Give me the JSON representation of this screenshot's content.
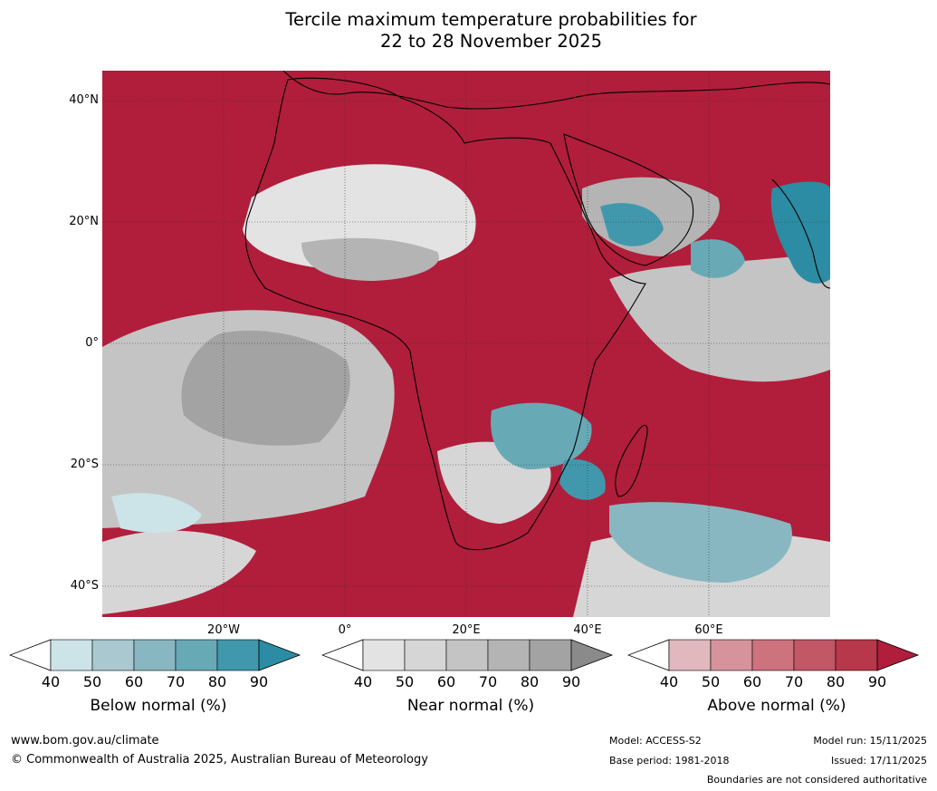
{
  "title": {
    "line1": "Tercile maximum temperature probabilities for",
    "line2": "22 to 28 November 2025"
  },
  "map": {
    "lat_labels": [
      "40°N",
      "20°N",
      "0°",
      "20°S",
      "40°S"
    ],
    "lon_labels": [
      "20°W",
      "0°",
      "20°E",
      "40°E",
      "60°E"
    ],
    "colors": {
      "above": [
        "#e0b8be",
        "#d6939c",
        "#cc737e",
        "#c25766",
        "#b7384a",
        "#b01e3b"
      ],
      "near": [
        "#e3e3e3",
        "#d6d6d6",
        "#c4c4c4",
        "#b4b4b4",
        "#a3a3a3",
        "#8a8a8a"
      ],
      "below": [
        "#cce3e8",
        "#a9c8cf",
        "#89b7c1",
        "#68a9b6",
        "#4198ac",
        "#2b8ca3"
      ]
    }
  },
  "legends": [
    {
      "id": "below",
      "title": "Below normal (%)",
      "ticks": [
        "40",
        "50",
        "60",
        "70",
        "80",
        "90"
      ],
      "colors": [
        "#cce3e8",
        "#a9c8cf",
        "#89b7c1",
        "#68a9b6",
        "#4198ac"
      ],
      "extend_color": "#2b8ca3"
    },
    {
      "id": "near",
      "title": "Near normal (%)",
      "ticks": [
        "40",
        "50",
        "60",
        "70",
        "80",
        "90"
      ],
      "colors": [
        "#e3e3e3",
        "#d6d6d6",
        "#c4c4c4",
        "#b4b4b4",
        "#a3a3a3"
      ],
      "extend_color": "#8a8a8a"
    },
    {
      "id": "above",
      "title": "Above normal (%)",
      "ticks": [
        "40",
        "50",
        "60",
        "70",
        "80",
        "90"
      ],
      "colors": [
        "#e0b8be",
        "#d6939c",
        "#cc737e",
        "#c25766",
        "#b7384a"
      ],
      "extend_color": "#b01e3b"
    }
  ],
  "footer": {
    "url": "www.bom.gov.au/climate",
    "copyright": "© Commonwealth of Australia 2025, Australian Bureau of Meteorology",
    "model": "Model: ACCESS-S2",
    "base_period": "Base period: 1981-2018",
    "model_run": "Model run: 15/11/2025",
    "issued": "Issued: 17/11/2025",
    "disclaimer": "Boundaries are not considered authoritative"
  }
}
